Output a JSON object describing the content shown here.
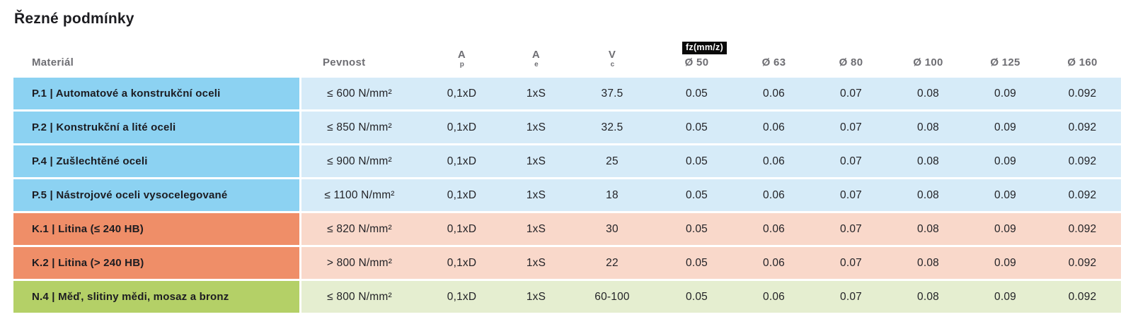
{
  "title": "Řezné podmínky",
  "table": {
    "fz_badge": "fz(mm/z)",
    "headers": {
      "material": "Materiál",
      "pevnost": "Pevnost",
      "ap": {
        "base": "A",
        "sub": "p"
      },
      "ae": {
        "base": "A",
        "sub": "e"
      },
      "vc": {
        "base": "V",
        "sub": "c"
      },
      "diameters": [
        "Ø 50",
        "Ø 63",
        "Ø 80",
        "Ø 100",
        "Ø 125",
        "Ø 160"
      ]
    },
    "rows": [
      {
        "group": "P",
        "material": "P.1 | Automatové a konstrukční oceli",
        "pevnost": "≤ 600 N/mm²",
        "ap": "0,1xD",
        "ae": "1xS",
        "vc": "37.5",
        "fz": [
          "0.05",
          "0.06",
          "0.07",
          "0.08",
          "0.09",
          "0.092"
        ]
      },
      {
        "group": "P",
        "material": "P.2 | Konstrukční a lité oceli",
        "pevnost": "≤ 850 N/mm²",
        "ap": "0,1xD",
        "ae": "1xS",
        "vc": "32.5",
        "fz": [
          "0.05",
          "0.06",
          "0.07",
          "0.08",
          "0.09",
          "0.092"
        ]
      },
      {
        "group": "P",
        "material": "P.4 | Zušlechtěné oceli",
        "pevnost": "≤ 900 N/mm²",
        "ap": "0,1xD",
        "ae": "1xS",
        "vc": "25",
        "fz": [
          "0.05",
          "0.06",
          "0.07",
          "0.08",
          "0.09",
          "0.092"
        ]
      },
      {
        "group": "P",
        "material": "P.5 | Nástrojové oceli vysocelegované",
        "pevnost": "≤ 1100 N/mm²",
        "ap": "0,1xD",
        "ae": "1xS",
        "vc": "18",
        "fz": [
          "0.05",
          "0.06",
          "0.07",
          "0.08",
          "0.09",
          "0.092"
        ]
      },
      {
        "group": "K",
        "material": "K.1 | Litina (≤ 240 HB)",
        "pevnost": "≤ 820 N/mm²",
        "ap": "0,1xD",
        "ae": "1xS",
        "vc": "30",
        "fz": [
          "0.05",
          "0.06",
          "0.07",
          "0.08",
          "0.09",
          "0.092"
        ]
      },
      {
        "group": "K",
        "material": "K.2 | Litina (> 240 HB)",
        "pevnost": "> 800 N/mm²",
        "ap": "0,1xD",
        "ae": "1xS",
        "vc": "22",
        "fz": [
          "0.05",
          "0.06",
          "0.07",
          "0.08",
          "0.09",
          "0.092"
        ]
      },
      {
        "group": "N",
        "material": "N.4 | Měď, slitiny mědi, mosaz a bronz",
        "pevnost": "≤ 800 N/mm²",
        "ap": "0,1xD",
        "ae": "1xS",
        "vc": "60-100",
        "fz": [
          "0.05",
          "0.06",
          "0.07",
          "0.08",
          "0.09",
          "0.092"
        ]
      }
    ]
  },
  "colors": {
    "blue_strong": "#8CD2F2",
    "blue_light": "#D6EBF8",
    "orange_strong": "#EF8E68",
    "orange_light": "#F9D8CA",
    "green_strong": "#B4D067",
    "green_light": "#E5EED0",
    "badge_bg": "#0A0A0A",
    "badge_text": "#FFFFFF",
    "header_text": "#6E6E73",
    "title_text": "#1C1C20",
    "material_text": "#1C1C21",
    "cell_text": "#232327"
  }
}
